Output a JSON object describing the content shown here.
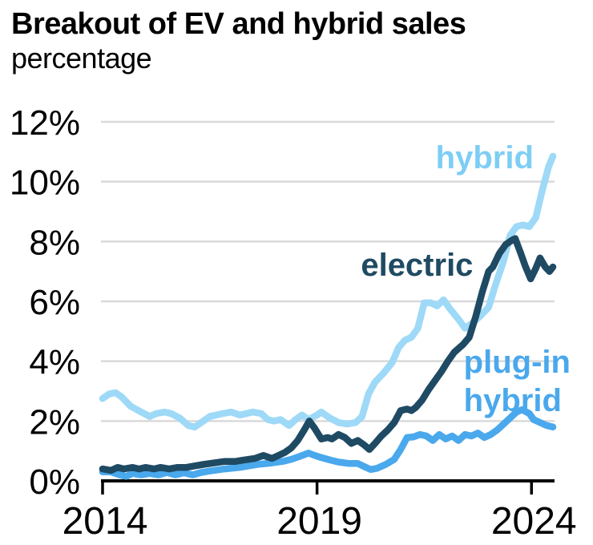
{
  "header": {
    "title": "Breakout of EV and hybrid sales",
    "subtitle": "percentage"
  },
  "chart_data": {
    "type": "line",
    "title": "Breakout of EV and hybrid sales",
    "subtitle": "percentage",
    "xlabel": "",
    "ylabel": "percentage",
    "grid": "horizontal-only",
    "legend_position": "inline-labels",
    "x_axis": {
      "range": [
        2014,
        2024.5
      ],
      "ticks": [
        2014,
        2019,
        2024
      ],
      "tick_labels": [
        "2014",
        "2019",
        "2024"
      ]
    },
    "y_axis": {
      "range": [
        0,
        12
      ],
      "ticks": [
        0,
        2,
        4,
        6,
        8,
        10,
        12
      ],
      "tick_labels": [
        "0%",
        "2%",
        "4%",
        "6%",
        "8%",
        "10%",
        "12%"
      ],
      "gridlines": [
        2,
        4,
        6,
        8,
        10,
        12
      ]
    },
    "colors": {
      "hybrid": "#9ED9F7",
      "hybrid_label": "#7DCEF5",
      "electric": "#1F4A63",
      "plug_in_hybrid": "#4AA8EC",
      "gridline": "#D9D9D9",
      "axis": "#000000"
    },
    "series": [
      {
        "name": "hybrid",
        "color": "#9ED9F7",
        "points": [
          [
            2014.0,
            2.75
          ],
          [
            2014.15,
            2.9
          ],
          [
            2014.3,
            2.95
          ],
          [
            2014.45,
            2.8
          ],
          [
            2014.65,
            2.5
          ],
          [
            2014.9,
            2.3
          ],
          [
            2015.1,
            2.15
          ],
          [
            2015.25,
            2.25
          ],
          [
            2015.45,
            2.3
          ],
          [
            2015.6,
            2.25
          ],
          [
            2015.8,
            2.1
          ],
          [
            2016.0,
            1.85
          ],
          [
            2016.15,
            1.8
          ],
          [
            2016.3,
            1.95
          ],
          [
            2016.5,
            2.15
          ],
          [
            2016.65,
            2.2
          ],
          [
            2016.8,
            2.25
          ],
          [
            2017.0,
            2.3
          ],
          [
            2017.2,
            2.2
          ],
          [
            2017.35,
            2.25
          ],
          [
            2017.5,
            2.3
          ],
          [
            2017.7,
            2.25
          ],
          [
            2017.85,
            2.05
          ],
          [
            2018.0,
            2.0
          ],
          [
            2018.15,
            2.05
          ],
          [
            2018.35,
            1.85
          ],
          [
            2018.5,
            2.05
          ],
          [
            2018.65,
            2.2
          ],
          [
            2018.8,
            2.05
          ],
          [
            2019.0,
            2.2
          ],
          [
            2019.1,
            2.3
          ],
          [
            2019.3,
            2.1
          ],
          [
            2019.5,
            1.95
          ],
          [
            2019.7,
            1.9
          ],
          [
            2019.9,
            1.95
          ],
          [
            2020.05,
            2.15
          ],
          [
            2020.2,
            2.9
          ],
          [
            2020.35,
            3.3
          ],
          [
            2020.55,
            3.6
          ],
          [
            2020.75,
            3.95
          ],
          [
            2020.9,
            4.45
          ],
          [
            2021.05,
            4.7
          ],
          [
            2021.2,
            4.8
          ],
          [
            2021.35,
            5.1
          ],
          [
            2021.5,
            5.95
          ],
          [
            2021.65,
            5.95
          ],
          [
            2021.8,
            5.85
          ],
          [
            2021.95,
            6.05
          ],
          [
            2022.1,
            5.75
          ],
          [
            2022.3,
            5.4
          ],
          [
            2022.45,
            5.1
          ],
          [
            2022.6,
            5.25
          ],
          [
            2022.8,
            5.5
          ],
          [
            2023.0,
            5.8
          ],
          [
            2023.15,
            6.5
          ],
          [
            2023.35,
            7.35
          ],
          [
            2023.5,
            8.2
          ],
          [
            2023.65,
            8.5
          ],
          [
            2023.8,
            8.55
          ],
          [
            2023.95,
            8.5
          ],
          [
            2024.1,
            8.8
          ],
          [
            2024.25,
            9.7
          ],
          [
            2024.4,
            10.5
          ],
          [
            2024.5,
            10.85
          ]
        ]
      },
      {
        "name": "plug-in hybrid",
        "color": "#4AA8EC",
        "points": [
          [
            2014.0,
            0.3
          ],
          [
            2014.2,
            0.3
          ],
          [
            2014.4,
            0.2
          ],
          [
            2014.55,
            0.15
          ],
          [
            2014.7,
            0.25
          ],
          [
            2014.9,
            0.2
          ],
          [
            2015.1,
            0.25
          ],
          [
            2015.3,
            0.2
          ],
          [
            2015.5,
            0.28
          ],
          [
            2015.7,
            0.2
          ],
          [
            2015.9,
            0.27
          ],
          [
            2016.1,
            0.2
          ],
          [
            2016.3,
            0.28
          ],
          [
            2016.5,
            0.33
          ],
          [
            2016.85,
            0.4
          ],
          [
            2017.2,
            0.45
          ],
          [
            2017.6,
            0.55
          ],
          [
            2017.95,
            0.6
          ],
          [
            2018.2,
            0.65
          ],
          [
            2018.4,
            0.72
          ],
          [
            2018.6,
            0.82
          ],
          [
            2018.8,
            0.93
          ],
          [
            2018.95,
            0.85
          ],
          [
            2019.1,
            0.78
          ],
          [
            2019.3,
            0.7
          ],
          [
            2019.5,
            0.63
          ],
          [
            2019.75,
            0.58
          ],
          [
            2019.95,
            0.58
          ],
          [
            2020.1,
            0.48
          ],
          [
            2020.25,
            0.38
          ],
          [
            2020.4,
            0.42
          ],
          [
            2020.6,
            0.55
          ],
          [
            2020.8,
            0.72
          ],
          [
            2020.95,
            1.05
          ],
          [
            2021.1,
            1.45
          ],
          [
            2021.25,
            1.47
          ],
          [
            2021.4,
            1.55
          ],
          [
            2021.55,
            1.5
          ],
          [
            2021.7,
            1.35
          ],
          [
            2021.85,
            1.55
          ],
          [
            2022.0,
            1.4
          ],
          [
            2022.15,
            1.5
          ],
          [
            2022.3,
            1.35
          ],
          [
            2022.45,
            1.55
          ],
          [
            2022.6,
            1.5
          ],
          [
            2022.75,
            1.6
          ],
          [
            2022.9,
            1.45
          ],
          [
            2023.05,
            1.55
          ],
          [
            2023.2,
            1.7
          ],
          [
            2023.35,
            1.9
          ],
          [
            2023.5,
            2.1
          ],
          [
            2023.65,
            2.3
          ],
          [
            2023.78,
            2.38
          ],
          [
            2023.95,
            2.25
          ],
          [
            2024.05,
            2.05
          ],
          [
            2024.2,
            1.95
          ],
          [
            2024.35,
            1.85
          ],
          [
            2024.5,
            1.8
          ]
        ]
      },
      {
        "name": "electric",
        "color": "#1F4A63",
        "points": [
          [
            2014.0,
            0.4
          ],
          [
            2014.2,
            0.35
          ],
          [
            2014.35,
            0.45
          ],
          [
            2014.5,
            0.4
          ],
          [
            2014.7,
            0.45
          ],
          [
            2014.85,
            0.4
          ],
          [
            2015.0,
            0.45
          ],
          [
            2015.2,
            0.4
          ],
          [
            2015.35,
            0.45
          ],
          [
            2015.55,
            0.4
          ],
          [
            2015.75,
            0.45
          ],
          [
            2015.95,
            0.45
          ],
          [
            2016.15,
            0.5
          ],
          [
            2016.35,
            0.55
          ],
          [
            2016.6,
            0.6
          ],
          [
            2016.85,
            0.65
          ],
          [
            2017.1,
            0.65
          ],
          [
            2017.3,
            0.7
          ],
          [
            2017.55,
            0.75
          ],
          [
            2017.75,
            0.85
          ],
          [
            2017.95,
            0.75
          ],
          [
            2018.1,
            0.85
          ],
          [
            2018.25,
            0.95
          ],
          [
            2018.4,
            1.1
          ],
          [
            2018.55,
            1.35
          ],
          [
            2018.7,
            1.7
          ],
          [
            2018.82,
            2.0
          ],
          [
            2018.95,
            1.75
          ],
          [
            2019.1,
            1.4
          ],
          [
            2019.25,
            1.45
          ],
          [
            2019.35,
            1.4
          ],
          [
            2019.5,
            1.55
          ],
          [
            2019.65,
            1.45
          ],
          [
            2019.8,
            1.25
          ],
          [
            2019.95,
            1.35
          ],
          [
            2020.1,
            1.2
          ],
          [
            2020.22,
            1.05
          ],
          [
            2020.35,
            1.25
          ],
          [
            2020.5,
            1.5
          ],
          [
            2020.65,
            1.7
          ],
          [
            2020.8,
            1.95
          ],
          [
            2020.95,
            2.35
          ],
          [
            2021.1,
            2.4
          ],
          [
            2021.2,
            2.35
          ],
          [
            2021.3,
            2.45
          ],
          [
            2021.45,
            2.7
          ],
          [
            2021.6,
            3.05
          ],
          [
            2021.75,
            3.35
          ],
          [
            2021.9,
            3.65
          ],
          [
            2022.05,
            4.0
          ],
          [
            2022.2,
            4.3
          ],
          [
            2022.4,
            4.55
          ],
          [
            2022.55,
            4.8
          ],
          [
            2022.7,
            5.5
          ],
          [
            2022.85,
            6.3
          ],
          [
            2023.0,
            7.0
          ],
          [
            2023.1,
            7.15
          ],
          [
            2023.25,
            7.6
          ],
          [
            2023.4,
            7.9
          ],
          [
            2023.55,
            8.05
          ],
          [
            2023.62,
            8.1
          ],
          [
            2023.75,
            7.6
          ],
          [
            2023.85,
            7.2
          ],
          [
            2023.98,
            6.75
          ],
          [
            2024.1,
            7.1
          ],
          [
            2024.2,
            7.45
          ],
          [
            2024.32,
            7.15
          ],
          [
            2024.42,
            7.0
          ],
          [
            2024.5,
            7.15
          ]
        ]
      }
    ],
    "annotations": [
      {
        "name": "hybrid",
        "lines": [
          "hybrid"
        ],
        "color": "#7DCEF5",
        "anchor": "end",
        "x_year": 2024.05,
        "y_pct": 10.45
      },
      {
        "name": "electric",
        "lines": [
          "electric"
        ],
        "color": "#1F4A63",
        "anchor": "end",
        "x_year": 2022.64,
        "y_pct": 6.86
      },
      {
        "name": "plug-in-hybrid",
        "lines": [
          "plug-in",
          "hybrid"
        ],
        "color": "#4AA8EC",
        "anchor": "start",
        "x_year": 2022.42,
        "y_pct": 3.62
      }
    ]
  }
}
